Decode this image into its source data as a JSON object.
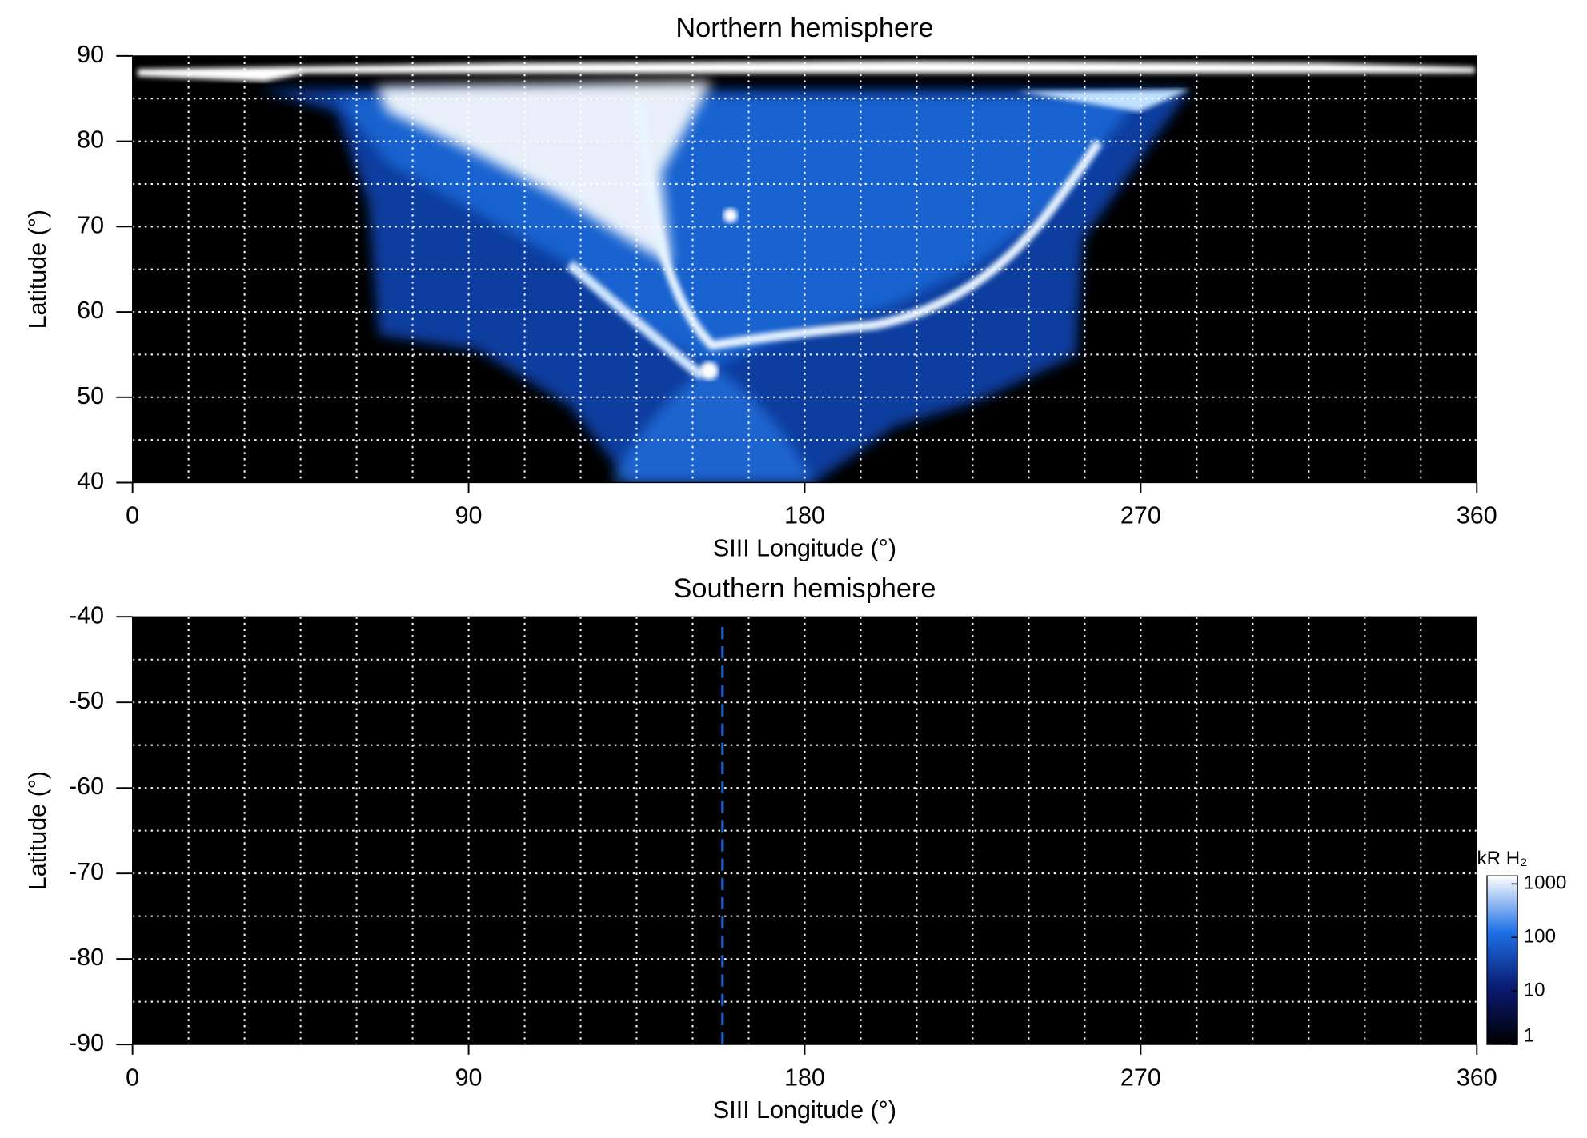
{
  "chart_data": [
    {
      "type": "heatmap",
      "title": "Northern hemisphere",
      "x_label": "SIII Longitude (°)",
      "y_label": "Latitude (°)",
      "xlim": [
        0,
        360
      ],
      "xticks": [
        0,
        90,
        180,
        270,
        360
      ],
      "ylim": [
        40,
        90
      ],
      "yticks": [
        40,
        50,
        60,
        70,
        80,
        90
      ],
      "xgrid": [
        15,
        30,
        45,
        60,
        75,
        90,
        105,
        120,
        135,
        150,
        165,
        180,
        195,
        210,
        225,
        240,
        255,
        270,
        285,
        300,
        315,
        330,
        345
      ],
      "ygrid": [
        45,
        50,
        55,
        60,
        65,
        70,
        75,
        80,
        85
      ],
      "grid_color": "#ffffff"
    },
    {
      "type": "heatmap",
      "title": "Southern hemisphere",
      "x_label": "SIII Longitude (°)",
      "y_label": "Latitude (°)",
      "xlim": [
        0,
        360
      ],
      "xticks": [
        0,
        90,
        180,
        270,
        360
      ],
      "ylim": [
        -90,
        -40
      ],
      "yticks": [
        -90,
        -80,
        -70,
        -60,
        -50,
        -40
      ],
      "xgrid": [
        15,
        30,
        45,
        60,
        75,
        90,
        105,
        120,
        135,
        150,
        165,
        180,
        195,
        210,
        225,
        240,
        255,
        270,
        285,
        300,
        315,
        330,
        345
      ],
      "ygrid": [
        -85,
        -80,
        -75,
        -70,
        -65,
        -60,
        -55,
        -50,
        -45
      ],
      "grid_color": "#ffffff",
      "vline": {
        "x": 158,
        "color": "#1f5fd0"
      },
      "colorbar": {
        "label": "kR H₂",
        "log": true,
        "lim": [
          1,
          1000
        ],
        "ticks": [
          1,
          10,
          100,
          1000
        ],
        "colors": [
          "#000000",
          "#0a1a70",
          "#1e70e6",
          "#ffffff"
        ]
      }
    }
  ]
}
